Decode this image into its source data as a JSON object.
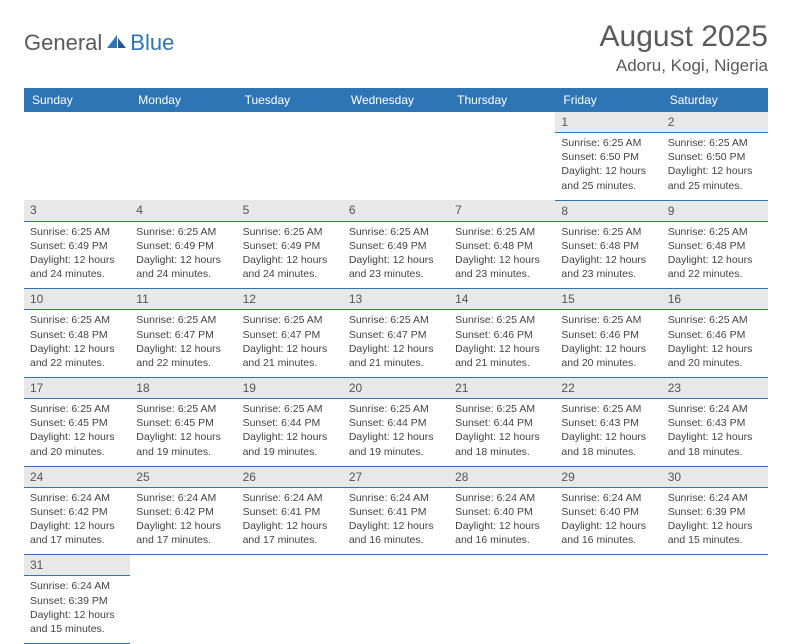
{
  "brand": {
    "part1": "General",
    "part2": "Blue"
  },
  "title": "August 2025",
  "location": "Adoru, Kogi, Nigeria",
  "colors": {
    "header_bg": "#2e75b6",
    "header_text": "#ffffff",
    "daynum_bg": "#e8e8e8",
    "border": "#2e75b6",
    "text": "#444444",
    "title_text": "#5a5a5a"
  },
  "daysOfWeek": [
    "Sunday",
    "Monday",
    "Tuesday",
    "Wednesday",
    "Thursday",
    "Friday",
    "Saturday"
  ],
  "weeks": [
    [
      null,
      null,
      null,
      null,
      null,
      {
        "n": "1",
        "sr": "6:25 AM",
        "ss": "6:50 PM",
        "dl": "12 hours and 25 minutes."
      },
      {
        "n": "2",
        "sr": "6:25 AM",
        "ss": "6:50 PM",
        "dl": "12 hours and 25 minutes."
      }
    ],
    [
      {
        "n": "3",
        "sr": "6:25 AM",
        "ss": "6:49 PM",
        "dl": "12 hours and 24 minutes."
      },
      {
        "n": "4",
        "sr": "6:25 AM",
        "ss": "6:49 PM",
        "dl": "12 hours and 24 minutes."
      },
      {
        "n": "5",
        "sr": "6:25 AM",
        "ss": "6:49 PM",
        "dl": "12 hours and 24 minutes."
      },
      {
        "n": "6",
        "sr": "6:25 AM",
        "ss": "6:49 PM",
        "dl": "12 hours and 23 minutes."
      },
      {
        "n": "7",
        "sr": "6:25 AM",
        "ss": "6:48 PM",
        "dl": "12 hours and 23 minutes."
      },
      {
        "n": "8",
        "sr": "6:25 AM",
        "ss": "6:48 PM",
        "dl": "12 hours and 23 minutes."
      },
      {
        "n": "9",
        "sr": "6:25 AM",
        "ss": "6:48 PM",
        "dl": "12 hours and 22 minutes."
      }
    ],
    [
      {
        "n": "10",
        "sr": "6:25 AM",
        "ss": "6:48 PM",
        "dl": "12 hours and 22 minutes."
      },
      {
        "n": "11",
        "sr": "6:25 AM",
        "ss": "6:47 PM",
        "dl": "12 hours and 22 minutes."
      },
      {
        "n": "12",
        "sr": "6:25 AM",
        "ss": "6:47 PM",
        "dl": "12 hours and 21 minutes."
      },
      {
        "n": "13",
        "sr": "6:25 AM",
        "ss": "6:47 PM",
        "dl": "12 hours and 21 minutes."
      },
      {
        "n": "14",
        "sr": "6:25 AM",
        "ss": "6:46 PM",
        "dl": "12 hours and 21 minutes."
      },
      {
        "n": "15",
        "sr": "6:25 AM",
        "ss": "6:46 PM",
        "dl": "12 hours and 20 minutes."
      },
      {
        "n": "16",
        "sr": "6:25 AM",
        "ss": "6:46 PM",
        "dl": "12 hours and 20 minutes."
      }
    ],
    [
      {
        "n": "17",
        "sr": "6:25 AM",
        "ss": "6:45 PM",
        "dl": "12 hours and 20 minutes."
      },
      {
        "n": "18",
        "sr": "6:25 AM",
        "ss": "6:45 PM",
        "dl": "12 hours and 19 minutes."
      },
      {
        "n": "19",
        "sr": "6:25 AM",
        "ss": "6:44 PM",
        "dl": "12 hours and 19 minutes."
      },
      {
        "n": "20",
        "sr": "6:25 AM",
        "ss": "6:44 PM",
        "dl": "12 hours and 19 minutes."
      },
      {
        "n": "21",
        "sr": "6:25 AM",
        "ss": "6:44 PM",
        "dl": "12 hours and 18 minutes."
      },
      {
        "n": "22",
        "sr": "6:25 AM",
        "ss": "6:43 PM",
        "dl": "12 hours and 18 minutes."
      },
      {
        "n": "23",
        "sr": "6:24 AM",
        "ss": "6:43 PM",
        "dl": "12 hours and 18 minutes."
      }
    ],
    [
      {
        "n": "24",
        "sr": "6:24 AM",
        "ss": "6:42 PM",
        "dl": "12 hours and 17 minutes."
      },
      {
        "n": "25",
        "sr": "6:24 AM",
        "ss": "6:42 PM",
        "dl": "12 hours and 17 minutes."
      },
      {
        "n": "26",
        "sr": "6:24 AM",
        "ss": "6:41 PM",
        "dl": "12 hours and 17 minutes."
      },
      {
        "n": "27",
        "sr": "6:24 AM",
        "ss": "6:41 PM",
        "dl": "12 hours and 16 minutes."
      },
      {
        "n": "28",
        "sr": "6:24 AM",
        "ss": "6:40 PM",
        "dl": "12 hours and 16 minutes."
      },
      {
        "n": "29",
        "sr": "6:24 AM",
        "ss": "6:40 PM",
        "dl": "12 hours and 16 minutes."
      },
      {
        "n": "30",
        "sr": "6:24 AM",
        "ss": "6:39 PM",
        "dl": "12 hours and 15 minutes."
      }
    ],
    [
      {
        "n": "31",
        "sr": "6:24 AM",
        "ss": "6:39 PM",
        "dl": "12 hours and 15 minutes."
      },
      null,
      null,
      null,
      null,
      null,
      null
    ]
  ],
  "labels": {
    "sunrise": "Sunrise:",
    "sunset": "Sunset:",
    "daylight": "Daylight:"
  }
}
